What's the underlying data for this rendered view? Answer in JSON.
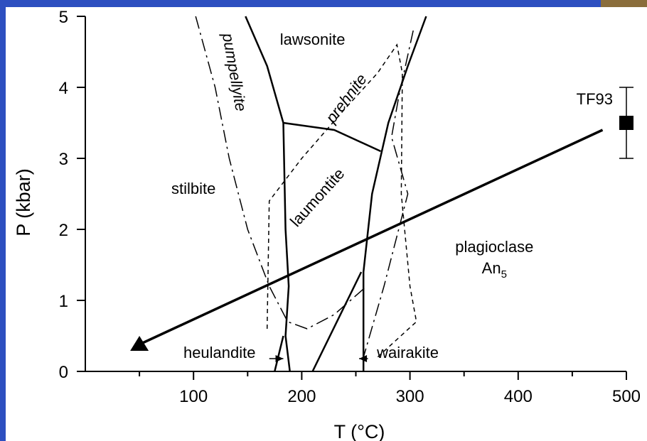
{
  "figure": {
    "background_color": "#2d4fc0",
    "panel_color": "#ffffff",
    "line_color": "#000000"
  },
  "chart_data": {
    "type": "phase-diagram",
    "xlabel": "T (°C)",
    "ylabel": "P (kbar)",
    "xlim": [
      0,
      500
    ],
    "ylim": [
      0,
      5
    ],
    "x_ticks": [
      {
        "value": 100,
        "label": "100"
      },
      {
        "value": 200,
        "label": "200"
      },
      {
        "value": 300,
        "label": "300"
      },
      {
        "value": 400,
        "label": "400"
      },
      {
        "value": 500,
        "label": "500"
      }
    ],
    "x_minor_ticks": [
      50,
      150,
      250,
      350,
      450
    ],
    "y_ticks": [
      {
        "value": 0,
        "label": "0"
      },
      {
        "value": 1,
        "label": "1"
      },
      {
        "value": 2,
        "label": "2"
      },
      {
        "value": 3,
        "label": "3"
      },
      {
        "value": 4,
        "label": "4"
      },
      {
        "value": 5,
        "label": "5"
      }
    ],
    "field_labels": [
      {
        "text": "lawsonite",
        "x": 210,
        "y": 4.6
      },
      {
        "text": "stilbite",
        "x": 100,
        "y": 2.5
      },
      {
        "text": "laumontite",
        "x": 218,
        "y": 2.4,
        "rotate": -48
      },
      {
        "text": "plagioclase",
        "x": 378,
        "y": 1.68
      },
      {
        "text": "An",
        "sub": "5",
        "x": 378,
        "y": 1.38
      }
    ],
    "italic_labels": [
      {
        "text": "pumpellyite",
        "x": 133,
        "y": 4.2,
        "rotate": 80
      },
      {
        "text": "prehnite",
        "x": 245,
        "y": 3.8,
        "rotate": -53
      }
    ],
    "callout_labels": [
      {
        "text": "heulandite",
        "x": 124,
        "y": 0.19,
        "arrow_to": [
          183,
          0.15
        ]
      },
      {
        "text": "wairakite",
        "x": 298,
        "y": 0.19,
        "arrow_to": [
          253,
          0.2
        ]
      }
    ],
    "solid_boundaries": [
      [
        [
          148,
          5
        ],
        [
          168,
          4.3
        ],
        [
          183,
          3.5
        ],
        [
          185,
          2
        ],
        [
          188,
          1.2
        ],
        [
          185,
          0.5
        ],
        [
          189,
          0
        ]
      ],
      [
        [
          175,
          0
        ],
        [
          183,
          0.5
        ]
      ],
      [
        [
          183,
          3.5
        ],
        [
          230,
          3.4
        ],
        [
          273,
          3.1
        ]
      ],
      [
        [
          315,
          5
        ],
        [
          298,
          4.3
        ],
        [
          280,
          3.5
        ],
        [
          265,
          2.5
        ],
        [
          257,
          1.4
        ],
        [
          257,
          0
        ]
      ],
      [
        [
          210,
          0
        ],
        [
          255,
          1.4
        ]
      ]
    ],
    "dashed_boundaries": [
      [
        [
          168,
          0.6
        ],
        [
          170,
          2.4
        ],
        [
          200,
          3
        ],
        [
          240,
          3.7
        ],
        [
          270,
          4.2
        ],
        [
          288,
          4.6
        ],
        [
          293,
          4.2
        ],
        [
          292,
          2.5
        ],
        [
          300,
          1.2
        ],
        [
          306,
          0.7
        ],
        [
          270,
          0.2
        ]
      ]
    ],
    "dash_dot_boundaries": [
      [
        [
          303,
          4.8
        ],
        [
          290,
          3.9
        ],
        [
          283,
          3.3
        ],
        [
          298,
          2.5
        ],
        [
          276,
          1.2
        ],
        [
          257,
          0.2
        ]
      ],
      [
        [
          102,
          5
        ],
        [
          120,
          4
        ],
        [
          133,
          3
        ],
        [
          150,
          2
        ],
        [
          170,
          1.2
        ],
        [
          187,
          0.7
        ],
        [
          205,
          0.6
        ],
        [
          230,
          0.8
        ],
        [
          260,
          1.2
        ]
      ]
    ],
    "path_line": {
      "from": [
        50,
        0.38
      ],
      "to": [
        478,
        3.4
      ]
    },
    "marker": {
      "x": 50,
      "y": 0.38,
      "shape": "triangle"
    },
    "reference_point": {
      "label": "TF93",
      "x": 500,
      "y": 3.5,
      "yerr_low": 3.0,
      "yerr_high": 4.0,
      "shape": "square"
    }
  }
}
